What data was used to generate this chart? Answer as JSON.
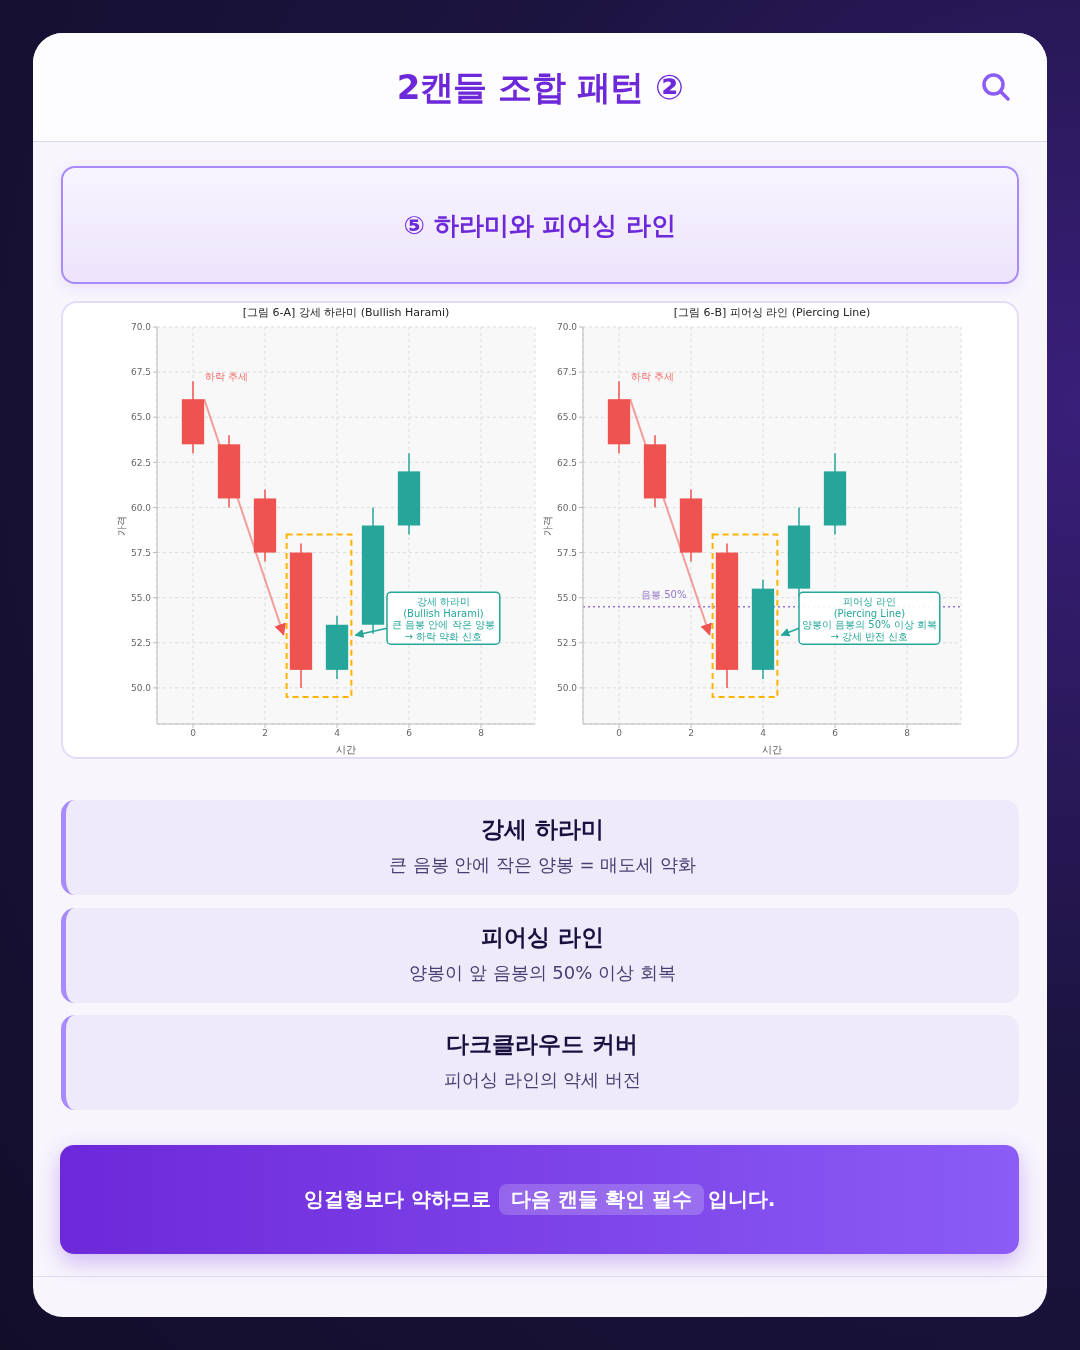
{
  "chart_data": [
    {
      "type": "other",
      "title": "2캔들 조합 패턴 ②",
      "subtitle": "⑤ 하라미와 피어싱 라인"
    },
    {
      "type": "candlestick",
      "title": "[그림 6-A] 강세 하라미 (Bullish Harami)",
      "xlabel": "시간",
      "ylabel": "가격",
      "x": [
        0,
        1,
        2,
        3,
        4,
        5,
        6
      ],
      "ohlc": [
        [
          66,
          67,
          63,
          63.5
        ],
        [
          63.5,
          64,
          60,
          60.5
        ],
        [
          60.5,
          61,
          57,
          57.5
        ],
        [
          57.5,
          58,
          50,
          51
        ],
        [
          51,
          54,
          50.5,
          53.5
        ],
        [
          53.5,
          60,
          53,
          59
        ],
        [
          59,
          63,
          58.5,
          62
        ]
      ],
      "colors": [
        "#ef5350",
        "#ef5350",
        "#ef5350",
        "#ef5350",
        "#26a69a",
        "#26a69a",
        "#26a69a"
      ],
      "xlim": [
        -1,
        9.5
      ],
      "xticks": [
        0,
        2,
        4,
        6,
        8
      ],
      "ylim": [
        48,
        70
      ],
      "yticks": [
        {
          "value": 50,
          "label": "50.0"
        },
        {
          "value": 52.5,
          "label": "52.5"
        },
        {
          "value": 55,
          "label": "55.0"
        },
        {
          "value": 57.5,
          "label": "57.5"
        },
        {
          "value": 60,
          "label": "60.0"
        },
        {
          "value": 62.5,
          "label": "62.5"
        },
        {
          "value": 65,
          "label": "65.0"
        },
        {
          "value": 67.5,
          "label": "67.5"
        },
        {
          "value": 70,
          "label": "70.0"
        }
      ],
      "grid": true,
      "annotations": [
        "하락 추세",
        "강세 하라미\n(Bullish Harami)\n큰 음봉 안에 작은 양봉\n→ 하락 약화 신호"
      ]
    },
    {
      "type": "candlestick",
      "title": "[그림 6-B] 피어싱 라인 (Piercing Line)",
      "xlabel": "시간",
      "ylabel": "가격",
      "x": [
        0,
        1,
        2,
        3,
        4,
        5,
        6
      ],
      "ohlc": [
        [
          66,
          67,
          63,
          63.5
        ],
        [
          63.5,
          64,
          60,
          60.5
        ],
        [
          60.5,
          61,
          57,
          57.5
        ],
        [
          57.5,
          58,
          50,
          51
        ],
        [
          51,
          56,
          50.5,
          55.5
        ],
        [
          55.5,
          60,
          55,
          59
        ],
        [
          59,
          63,
          58.5,
          62
        ]
      ],
      "colors": [
        "#ef5350",
        "#ef5350",
        "#ef5350",
        "#ef5350",
        "#26a69a",
        "#26a69a",
        "#26a69a"
      ],
      "xlim": [
        -1,
        9.5
      ],
      "xticks": [
        0,
        2,
        4,
        6,
        8
      ],
      "ylim": [
        48,
        70
      ],
      "yticks": [
        {
          "value": 50,
          "label": "50.0"
        },
        {
          "value": 52.5,
          "label": "52.5"
        },
        {
          "value": 55,
          "label": "55.0"
        },
        {
          "value": 57.5,
          "label": "57.5"
        },
        {
          "value": 60,
          "label": "60.0"
        },
        {
          "value": 62.5,
          "label": "62.5"
        },
        {
          "value": 65,
          "label": "65.0"
        },
        {
          "value": 67.5,
          "label": "67.5"
        },
        {
          "value": 70,
          "label": "70.0"
        }
      ],
      "grid": true,
      "ref_lines": [
        {
          "axis": "y",
          "value": 54.5,
          "label": "음봉 50%",
          "color": "#9575cd",
          "line_style": "dotted"
        }
      ],
      "annotations": [
        "하락 추세",
        "피어싱 라인\n(Piercing Line)\n양봉이 음봉의 50% 이상 회복\n→ 강세 반전 신호"
      ]
    },
    {
      "type": "other",
      "annotations": [
        "강세 하라미",
        "큰 음봉 안에 작은 양봉 = 매도세 약화",
        "피어싱 라인",
        "양봉이 앞 음봉의 50% 이상 회복",
        "다크클라우드 커버",
        "피어싱 라인의 약세 버전"
      ]
    },
    {
      "type": "other",
      "annotations": [
        "잉걸형보다 약하므로",
        "다음 캔들 확인 필수",
        "입니다."
      ]
    }
  ]
}
